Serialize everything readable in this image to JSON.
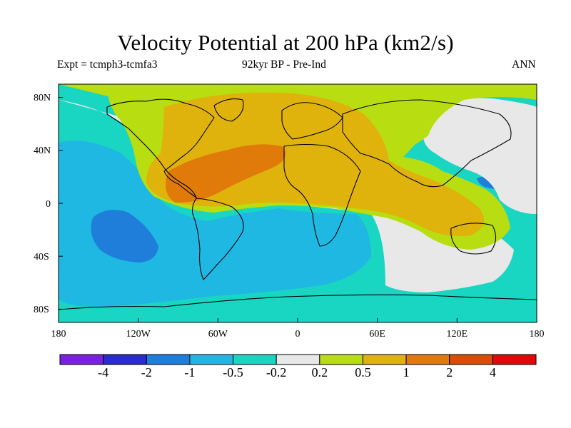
{
  "header": {
    "title": "Velocity Potential at 200 hPa (km2/s)",
    "left_label": "Expt = tcmph3-tcmfa3",
    "center_label": "92kyr BP - Pre-Ind",
    "right_label": "ANN"
  },
  "map": {
    "projection": "cylindrical equidistant",
    "lon_range": [
      -180,
      180
    ],
    "lat_range": [
      -90,
      90
    ],
    "y_tick_labels": [
      "80N",
      "40N",
      "0",
      "40S",
      "80S"
    ],
    "x_tick_labels": [
      "180",
      "120W",
      "60W",
      "0",
      "60E",
      "120E",
      "180"
    ]
  },
  "colorbar": {
    "labels": [
      "-4",
      "-2",
      "-1",
      "-0.5",
      "-0.2",
      "0.2",
      "0.5",
      "1",
      "2",
      "4"
    ],
    "colors": [
      "#7a1fe6",
      "#2a2ad6",
      "#1e7ed9",
      "#1fb8e3",
      "#19d6c2",
      "#e8e8e8",
      "#b8dd10",
      "#e0b20c",
      "#e07a08",
      "#e04a08",
      "#e00808"
    ]
  }
}
